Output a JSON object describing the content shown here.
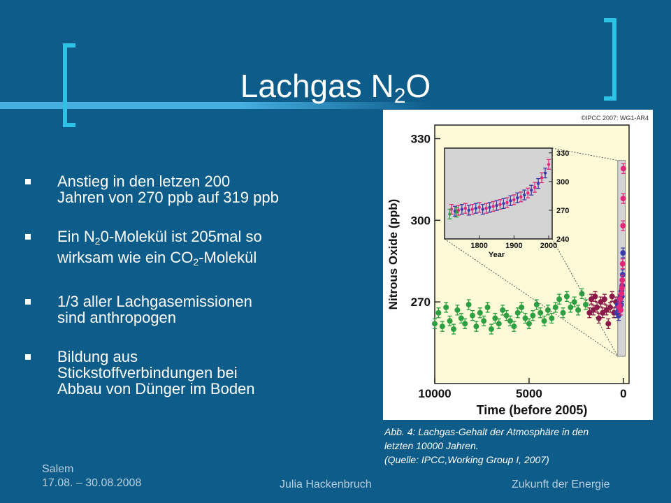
{
  "slide": {
    "title_main": "Lachgas N",
    "title_sub": "2",
    "title_end": "O",
    "bullets": [
      {
        "lines": [
          [
            "Anstieg in den letzen 200"
          ],
          [
            "Jahren von 270 ppb auf 319 ppb"
          ]
        ]
      },
      {
        "lines": [
          [
            "Ein N",
            {
              "sub": "2"
            },
            "0-Molekül ist 205mal so"
          ],
          [
            "wirksam wie ein CO",
            {
              "sub": "2"
            },
            "-Molekül"
          ]
        ]
      },
      {
        "lines": [
          [
            "1/3 aller Lachgasemissionen"
          ],
          [
            "sind anthropogen"
          ]
        ]
      },
      {
        "lines": [
          [
            "Bildung aus"
          ],
          [
            "Stickstoffverbindungen bei"
          ],
          [
            "Abbau von Dünger im Boden"
          ]
        ]
      }
    ],
    "caption": [
      "Abb. 4: Lachgas-Gehalt der Atmosphäre in den",
      "letzten 10000 Jahren.",
      "(Quelle: IPCC,Working Group I, 2007)"
    ],
    "footer": {
      "left_line1": "Salem",
      "left_line2": "17.08. – 30.08.2008",
      "middle": "Julia Hackenbruch",
      "right": "Zukunft der Energie"
    },
    "colors": {
      "background": "#0d5c8a",
      "bracket": "#2ec2e6",
      "accent_line": "#4db8ea"
    }
  },
  "chart_data": {
    "type": "scatter",
    "copyright": "©IPCC 2007: WG1-AR4",
    "xlabel": "Time (before 2005)",
    "ylabel": "Nitrous Oxide (ppb)",
    "xlim": [
      10000,
      -300
    ],
    "ylim": [
      240,
      335
    ],
    "xticks": [
      10000,
      5000,
      0
    ],
    "yticks": [
      270,
      300,
      330
    ],
    "grid": false,
    "colors": {
      "green": "#2ea043",
      "maroon": "#8b1a4a",
      "blue": "#3a3aa8",
      "pink": "#e0287a",
      "red": "#e8203a",
      "panel": "#fdfbd7",
      "shade": "#d4d4d4"
    },
    "series": [
      {
        "color": "green",
        "x": [
          10000,
          9800,
          9600,
          9400,
          9200,
          9000,
          8800,
          8600,
          8400,
          8200,
          8000,
          7800,
          7600,
          7400,
          7200,
          7000,
          6800,
          6600,
          6400,
          6200,
          6000,
          5800,
          5600,
          5400,
          5200,
          5000,
          4800,
          4600,
          4400,
          4200,
          4000,
          3800,
          3600,
          3400,
          3200,
          3000,
          2800,
          2600,
          2400,
          2200,
          2000
        ],
        "y": [
          262,
          266,
          261,
          268,
          263,
          260,
          267,
          264,
          262,
          269,
          265,
          261,
          266,
          263,
          268,
          260,
          264,
          262,
          267,
          265,
          263,
          261,
          266,
          268,
          264,
          262,
          265,
          269,
          266,
          263,
          267,
          264,
          268,
          271,
          266,
          272,
          268,
          270,
          267,
          273,
          269
        ]
      },
      {
        "color": "maroon",
        "x": [
          1800,
          1700,
          1600,
          1500,
          1400,
          1300,
          1200,
          1100,
          1000,
          900,
          800,
          700,
          600,
          500,
          400
        ],
        "y": [
          266,
          271,
          267,
          272,
          268,
          264,
          270,
          266,
          271,
          267,
          262,
          268,
          272,
          266,
          270
        ]
      },
      {
        "color": "blue",
        "x": [
          350,
          300,
          250,
          200,
          180,
          150,
          120,
          100,
          80,
          60,
          40,
          20
        ],
        "y": [
          266,
          269,
          265,
          271,
          268,
          272,
          269,
          274,
          272,
          276,
          280,
          288
        ]
      },
      {
        "color": "pink",
        "x": [
          220,
          180,
          140,
          100,
          80,
          60,
          40,
          20,
          10,
          0
        ],
        "y": [
          268,
          271,
          267,
          273,
          275,
          278,
          284,
          298,
          308,
          319
        ]
      }
    ],
    "inset": {
      "xlabel": "Year",
      "xlim": [
        1700,
        2010
      ],
      "ylim": [
        240,
        335
      ],
      "xticks": [
        1800,
        1900,
        2000
      ],
      "yticks": [
        240,
        270,
        300,
        330
      ],
      "series": [
        {
          "color": "pink",
          "x": [
            1720,
            1740,
            1760,
            1780,
            1800,
            1820,
            1840,
            1860,
            1880,
            1900,
            1920,
            1940,
            1960,
            1980,
            2000
          ],
          "y": [
            271,
            270,
            272,
            271,
            273,
            272,
            274,
            276,
            278,
            281,
            284,
            288,
            294,
            304,
            318
          ]
        },
        {
          "color": "blue",
          "x": [
            1730,
            1750,
            1770,
            1790,
            1810,
            1830,
            1850,
            1870,
            1890,
            1910,
            1930,
            1950,
            1970,
            1990
          ],
          "y": [
            269,
            271,
            270,
            272,
            271,
            273,
            275,
            277,
            280,
            283,
            286,
            291,
            298,
            309
          ]
        },
        {
          "color": "green",
          "x": [
            1715,
            1735
          ],
          "y": [
            266,
            268
          ]
        }
      ]
    }
  }
}
